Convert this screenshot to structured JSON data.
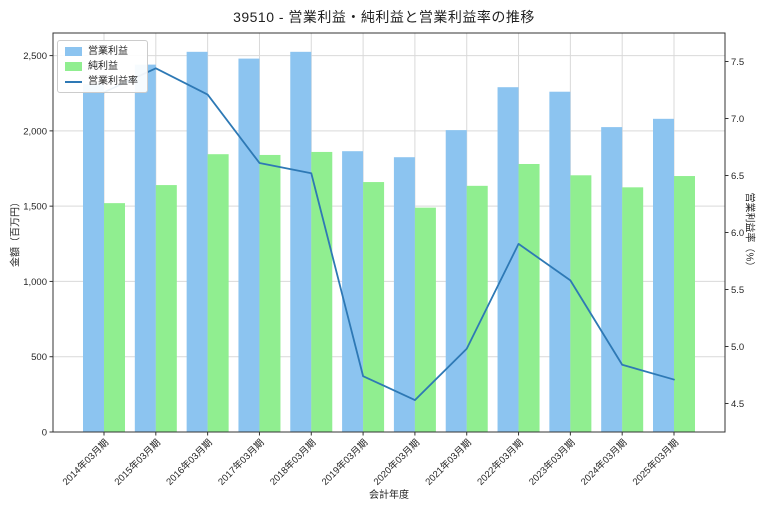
{
  "title": "39510 - 営業利益・純利益と営業利益率の推移",
  "legend": {
    "items": [
      {
        "label": "営業利益"
      },
      {
        "label": "純利益"
      },
      {
        "label": "営業利益率"
      }
    ]
  },
  "axes": {
    "left": {
      "label": "金額（百万円）",
      "ticks": [
        "0",
        "500",
        "1,000",
        "1,500",
        "2,000",
        "2,500"
      ],
      "tick_values": [
        0,
        500,
        1000,
        1500,
        2000,
        2500
      ]
    },
    "right": {
      "label": "営業利益率（%）",
      "ticks": [
        "4.5",
        "5.0",
        "5.5",
        "6.0",
        "6.5",
        "7.0",
        "7.5"
      ],
      "tick_values": [
        4.5,
        5.0,
        5.5,
        6.0,
        6.5,
        7.0,
        7.5
      ]
    },
    "x": {
      "label": "会計年度"
    }
  },
  "chart_data": {
    "type": "bar+line",
    "title": "39510 - 営業利益・純利益と営業利益率の推移",
    "xlabel": "会計年度",
    "ylabel_left": "金額（百万円）",
    "ylabel_right": "営業利益率（%）",
    "categories": [
      "2014年03月期",
      "2015年03月期",
      "2016年03月期",
      "2017年03月期",
      "2018年03月期",
      "2019年03月期",
      "2020年03月期",
      "2021年03月期",
      "2022年03月期",
      "2023年03月期",
      "2024年03月期",
      "2025年03月期"
    ],
    "series": [
      {
        "name": "営業利益",
        "type": "bar",
        "axis": "left",
        "color": "#8CC4F0",
        "values": [
          2310,
          2440,
          2525,
          2480,
          2525,
          1865,
          1825,
          2005,
          2290,
          2260,
          2025,
          2080
        ]
      },
      {
        "name": "純利益",
        "type": "bar",
        "axis": "left",
        "color": "#90EE90",
        "values": [
          1520,
          1640,
          1845,
          1840,
          1860,
          1660,
          1490,
          1635,
          1780,
          1705,
          1625,
          1700
        ]
      },
      {
        "name": "営業利益率",
        "type": "line",
        "axis": "right",
        "color": "#2E79B5",
        "values": [
          7.23,
          7.44,
          7.21,
          6.61,
          6.52,
          4.74,
          4.53,
          4.98,
          5.9,
          5.58,
          4.84,
          4.71
        ]
      }
    ],
    "ylim_left": [
      0,
      2650
    ],
    "ylim_right": [
      4.25,
      7.75
    ],
    "grid": true,
    "legend_position": "upper left"
  }
}
